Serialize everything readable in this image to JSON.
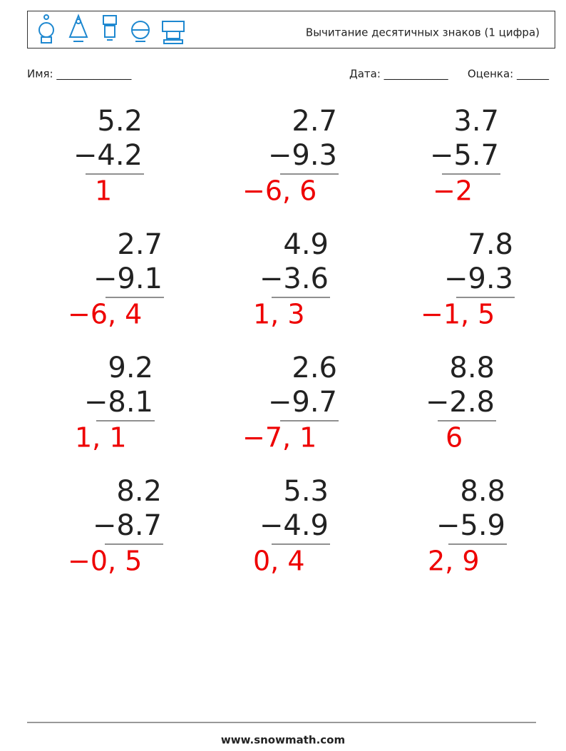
{
  "header": {
    "title": "Вычитание десятичных знаков (1 цифра)"
  },
  "fields": {
    "name": "Имя: ______________",
    "date": "Дата: ____________",
    "grade": "Оценка: ______"
  },
  "problems": [
    {
      "top": "5.2",
      "bottom": "−4.2",
      "answer": "1"
    },
    {
      "top": "2.7",
      "bottom": "−9.3",
      "answer": "−6, 6"
    },
    {
      "top": "3.7",
      "bottom": "−5.7",
      "answer": "−2"
    },
    {
      "top": "2.7",
      "bottom": "−9.1",
      "answer": "−6, 4"
    },
    {
      "top": "4.9",
      "bottom": "−3.6",
      "answer": "1, 3"
    },
    {
      "top": "7.8",
      "bottom": "−9.3",
      "answer": "−1, 5"
    },
    {
      "top": "9.2",
      "bottom": "−8.1",
      "answer": "1, 1"
    },
    {
      "top": "2.6",
      "bottom": "−9.7",
      "answer": "−7, 1"
    },
    {
      "top": "8.8",
      "bottom": "−2.8",
      "answer": "6"
    },
    {
      "top": "8.2",
      "bottom": "−8.7",
      "answer": "−0, 5"
    },
    {
      "top": "5.3",
      "bottom": "−4.9",
      "answer": "0, 4"
    },
    {
      "top": "8.8",
      "bottom": "−5.9",
      "answer": "2, 9"
    }
  ],
  "footer": {
    "site": "www.snowmath.com"
  }
}
